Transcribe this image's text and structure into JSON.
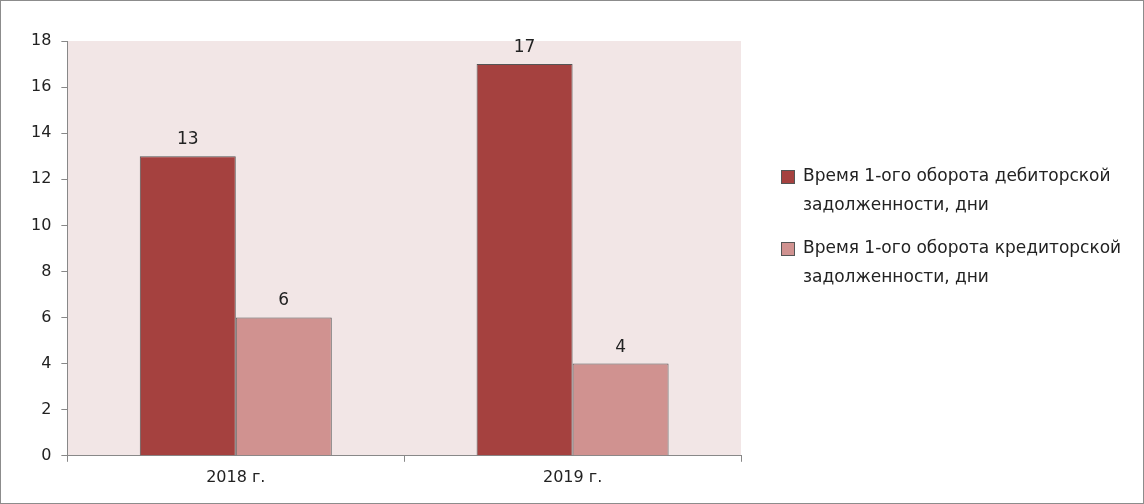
{
  "chart_data": {
    "type": "bar",
    "categories": [
      "2018 г.",
      "2019 г."
    ],
    "series": [
      {
        "name": "Время 1-ого оборота дебиторской задолженности, дни",
        "color": "#a5413f",
        "values": [
          13,
          17
        ]
      },
      {
        "name": "Время 1-ого оборота кредиторской задолженности, дни",
        "color": "#d09290",
        "values": [
          6,
          4
        ]
      }
    ],
    "ylim": [
      0,
      18
    ],
    "yticks": [
      0,
      2,
      4,
      6,
      8,
      10,
      12,
      14,
      16,
      18
    ],
    "grid": false,
    "legend": "right",
    "data_labels": true
  }
}
